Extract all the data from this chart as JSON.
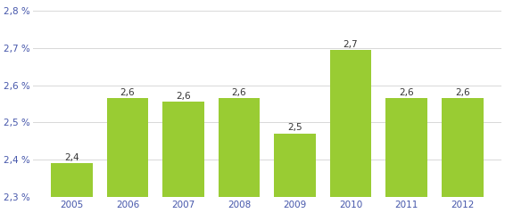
{
  "years": [
    2005,
    2006,
    2007,
    2008,
    2009,
    2010,
    2011,
    2012
  ],
  "values": [
    2.39,
    2.565,
    2.555,
    2.565,
    2.47,
    2.695,
    2.565,
    2.565
  ],
  "labels": [
    "2,4",
    "2,6",
    "2,6",
    "2,6",
    "2,5",
    "2,7",
    "2,6",
    "2,6"
  ],
  "bar_color": "#99cc33",
  "ylim": [
    2.3,
    2.82
  ],
  "yticks": [
    2.3,
    2.4,
    2.5,
    2.6,
    2.7,
    2.8
  ],
  "ytick_labels": [
    "2,3 %",
    "2,4 %",
    "2,5 %",
    "2,6 %",
    "2,7 %",
    "2,8 %"
  ],
  "background_color": "#ffffff",
  "grid_color": "#d8d8d8",
  "tick_label_color": "#4455aa",
  "bar_label_color": "#333333",
  "bar_label_fontsize": 7.5,
  "tick_fontsize": 7.5,
  "bar_width": 0.75,
  "xlim": [
    2004.3,
    2012.7
  ]
}
